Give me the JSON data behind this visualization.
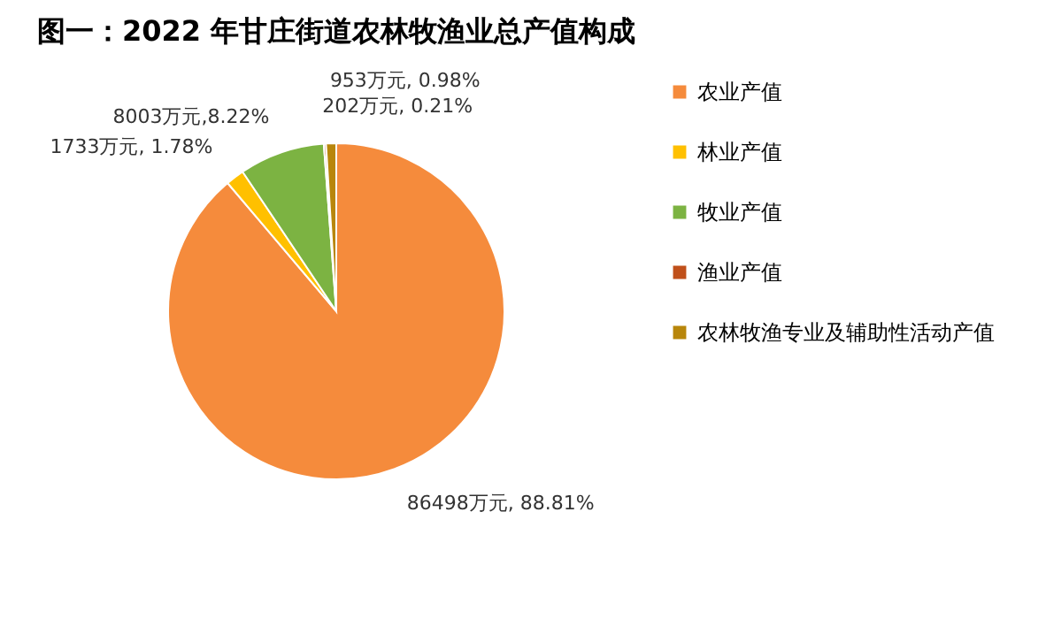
{
  "chart_data": {
    "type": "pie",
    "title": "图一：2022 年甘庄街道农林牧渔业总产值构成",
    "categories": [
      "农业产值",
      "林业产值",
      "牧业产值",
      "渔业产值",
      "农林牧渔专业及辅助性活动产值"
    ],
    "values": [
      86498,
      1733,
      8003,
      202,
      953
    ],
    "colors": [
      "#f58b3c",
      "#ffc000",
      "#7cb342",
      "#c0501a",
      "#b8860b"
    ],
    "value_labels": [
      "86498万元, 88.81%",
      "1733万元, 1.78%",
      "8003万元,8.22%",
      "202万元, 0.21%",
      "953万元, 0.98%"
    ],
    "legend": "right"
  }
}
